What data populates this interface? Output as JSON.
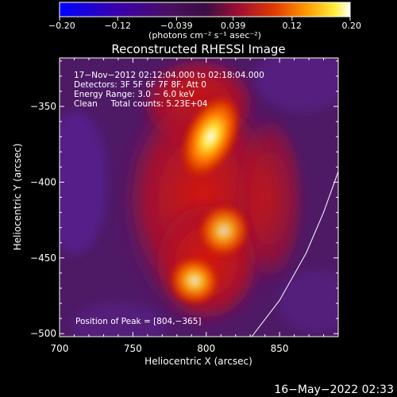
{
  "chart_data": {
    "type": "heatmap",
    "title": "Reconstructed RHESSI Image",
    "xlabel": "Heliocentric X (arcsec)",
    "ylabel": "Heliocentric Y (arcsec)",
    "xlim": [
      700,
      890
    ],
    "ylim": [
      -502,
      -318
    ],
    "x_ticks": [
      700,
      750,
      800,
      850
    ],
    "y_ticks": [
      -350,
      -400,
      -450,
      -500
    ],
    "x_tick_labels": [
      "700",
      "750",
      "800",
      "850"
    ],
    "y_tick_labels": [
      "−350",
      "−400",
      "−450",
      "−500"
    ],
    "colorbar": {
      "range": [
        -0.2,
        0.2
      ],
      "tick_values": [
        -0.2,
        -0.12,
        -0.039,
        0.039,
        0.12,
        0.2
      ],
      "tick_labels": [
        "−0.20",
        "−0.12",
        "−0.039",
        "0.039",
        "0.12",
        "0.20"
      ],
      "unit_label": "(photons cm⁻² s⁻¹ asec⁻²)"
    },
    "annotations": [
      "17−Nov−2012 02:12:04.000 to 02:18:04.000",
      "Detectors: 3F 5F 6F 7F 8F, Att 0",
      "Energy Range: 3.0 − 6.0 keV",
      "Clean     Total counts: 5.23E+04"
    ],
    "peak_label": "Position of Peak = [804,−365]",
    "peak_position": [
      804,
      -365
    ],
    "sources": [
      {
        "x": 803,
        "y": -370,
        "relative_intensity": 1.0
      },
      {
        "x": 812,
        "y": -432,
        "relative_intensity": 0.8
      },
      {
        "x": 792,
        "y": -465,
        "relative_intensity": 0.85
      }
    ],
    "limb_curve": [
      [
        831,
        -502
      ],
      [
        850,
        -478
      ],
      [
        868,
        -447
      ],
      [
        880,
        -420
      ],
      [
        890,
        -393
      ]
    ],
    "colors": {
      "colormap": [
        "#0000ff",
        "#4400aa",
        "#3a0d55",
        "#6a1a6e",
        "#b01a1a",
        "#e04000",
        "#ff8a00",
        "#ffd800",
        "#ffffff"
      ]
    }
  },
  "footer": {
    "timestamp": "16−May−2022 02:33"
  }
}
